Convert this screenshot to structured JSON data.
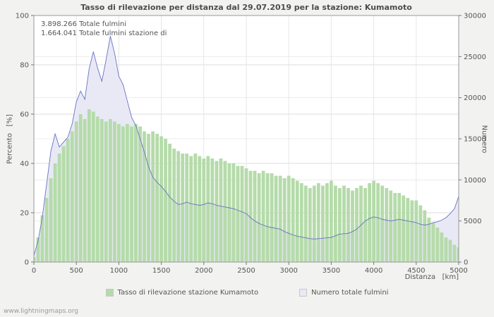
{
  "page": {
    "footer": "www.lightningmaps.org",
    "background": "#f2f2f0"
  },
  "chart": {
    "title": "Tasso di rilevazione per distanza dal 29.07.2019 per la stazione: Kumamoto",
    "annotations": [
      "3.898.266 Totale fulmini",
      "1.664.041 Totale fulmini stazione di"
    ]
  },
  "chart_data": {
    "type": "area",
    "title": "Tasso di rilevazione per distanza dal 29.07.2019 per la stazione: Kumamoto",
    "x_label": "Distanza   [km]",
    "y_left_label": "Percento   [%]",
    "y_right_label": "Numero",
    "x_range": [
      0,
      5000
    ],
    "y_left_range": [
      0,
      100
    ],
    "y_right_range": [
      0,
      30000
    ],
    "x_ticks": [
      0,
      500,
      1000,
      1500,
      2000,
      2500,
      3000,
      3500,
      4000,
      4500,
      5000
    ],
    "y_left_ticks": [
      0,
      20,
      40,
      60,
      80,
      100
    ],
    "y_right_ticks": [
      0,
      5000,
      10000,
      15000,
      20000,
      25000,
      30000
    ],
    "grid": true,
    "legend_position": "bottom",
    "x": [
      0,
      50,
      100,
      150,
      200,
      250,
      300,
      350,
      400,
      450,
      500,
      550,
      600,
      650,
      700,
      750,
      800,
      850,
      900,
      950,
      1000,
      1050,
      1100,
      1150,
      1200,
      1250,
      1300,
      1350,
      1400,
      1450,
      1500,
      1550,
      1600,
      1650,
      1700,
      1750,
      1800,
      1850,
      1900,
      1950,
      2000,
      2050,
      2100,
      2150,
      2200,
      2250,
      2300,
      2350,
      2400,
      2450,
      2500,
      2550,
      2600,
      2650,
      2700,
      2750,
      2800,
      2850,
      2900,
      2950,
      3000,
      3050,
      3100,
      3150,
      3200,
      3250,
      3300,
      3350,
      3400,
      3450,
      3500,
      3550,
      3600,
      3650,
      3700,
      3750,
      3800,
      3850,
      3900,
      3950,
      4000,
      4050,
      4100,
      4150,
      4200,
      4250,
      4300,
      4350,
      4400,
      4450,
      4500,
      4550,
      4600,
      4650,
      4700,
      4750,
      4800,
      4850,
      4900,
      4950,
      5000
    ],
    "series": [
      {
        "name": "Tasso di rilevazione stazione Kumamoto",
        "axis": "left",
        "style": "bars",
        "color": "#b5dbaa",
        "values": [
          2,
          10,
          19,
          26,
          34,
          40,
          44,
          47,
          50,
          53,
          57,
          60,
          58,
          62,
          61,
          59,
          58,
          57,
          58,
          57,
          56,
          55,
          56,
          55,
          56,
          55,
          53,
          52,
          53,
          52,
          51,
          50,
          48,
          46,
          45,
          44,
          44,
          43,
          44,
          43,
          42,
          43,
          42,
          41,
          42,
          41,
          40,
          40,
          39,
          39,
          38,
          37,
          37,
          36,
          37,
          36,
          36,
          35,
          35,
          34,
          35,
          34,
          33,
          32,
          31,
          30,
          31,
          32,
          31,
          32,
          33,
          31,
          30,
          31,
          30,
          29,
          30,
          31,
          30,
          32,
          33,
          32,
          31,
          30,
          29,
          28,
          28,
          27,
          26,
          25,
          25,
          23,
          21,
          18,
          16,
          14,
          12,
          10,
          9,
          7,
          6
        ]
      },
      {
        "name": "Numero totale fulmini",
        "axis": "right",
        "style": "area-line",
        "color": "#e9e9f6",
        "line_color": "#6673c5",
        "values": [
          800,
          2600,
          5500,
          9500,
          13500,
          15600,
          14000,
          14600,
          15200,
          16800,
          19500,
          20800,
          19800,
          23500,
          25600,
          23600,
          22000,
          24600,
          27500,
          25400,
          22600,
          21600,
          19600,
          17600,
          16600,
          15000,
          13400,
          11600,
          10300,
          9700,
          9200,
          8600,
          7900,
          7400,
          7000,
          7100,
          7300,
          7100,
          7000,
          6900,
          7000,
          7200,
          7100,
          6900,
          6800,
          6700,
          6600,
          6500,
          6300,
          6100,
          5900,
          5400,
          5000,
          4700,
          4500,
          4300,
          4200,
          4100,
          4000,
          3700,
          3500,
          3300,
          3150,
          3050,
          2950,
          2850,
          2800,
          2850,
          2900,
          2950,
          3000,
          3200,
          3400,
          3450,
          3500,
          3700,
          4000,
          4500,
          5000,
          5300,
          5500,
          5400,
          5200,
          5100,
          5000,
          5100,
          5200,
          5100,
          5000,
          4900,
          4800,
          4600,
          4500,
          4600,
          4800,
          4900,
          5100,
          5400,
          5900,
          6500,
          8000
        ]
      }
    ]
  }
}
